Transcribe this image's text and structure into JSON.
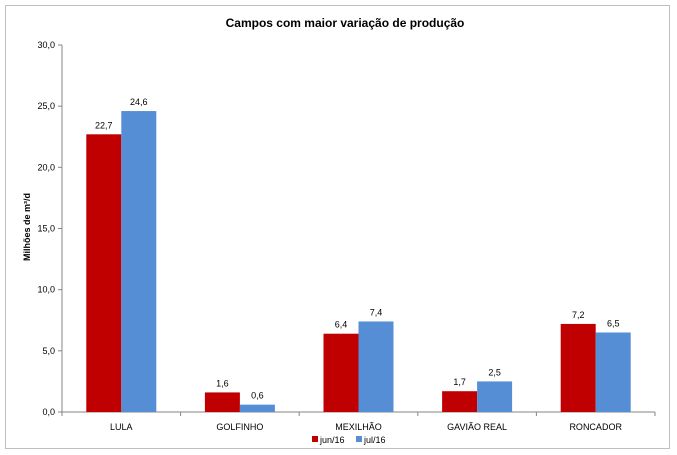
{
  "chart_data": {
    "type": "bar",
    "title": "Campos com maior variação de produção",
    "xlabel": "",
    "ylabel": "Milhões de m³/d",
    "categories": [
      "LULA",
      "GOLFINHO",
      "MEXILHÃO",
      "GAVIÃO REAL",
      "RONCADOR"
    ],
    "series": [
      {
        "name": "jun/16",
        "color": "#c00000",
        "values": [
          22.7,
          1.6,
          6.4,
          1.7,
          7.2
        ],
        "labels": [
          "22,7",
          "1,6",
          "6,4",
          "1,7",
          "7,2"
        ]
      },
      {
        "name": "jul/16",
        "color": "#558ed5",
        "values": [
          24.6,
          0.6,
          7.4,
          2.5,
          6.5
        ],
        "labels": [
          "24,6",
          "0,6",
          "7,4",
          "2,5",
          "6,5"
        ]
      }
    ],
    "ylim": [
      0,
      30
    ],
    "yticks": [
      0,
      5,
      10,
      15,
      20,
      25,
      30
    ],
    "ytick_labels": [
      "0,0",
      "5,0",
      "10,0",
      "15,0",
      "20,0",
      "25,0",
      "30,0"
    ],
    "grid": false,
    "legend": "bottom"
  }
}
